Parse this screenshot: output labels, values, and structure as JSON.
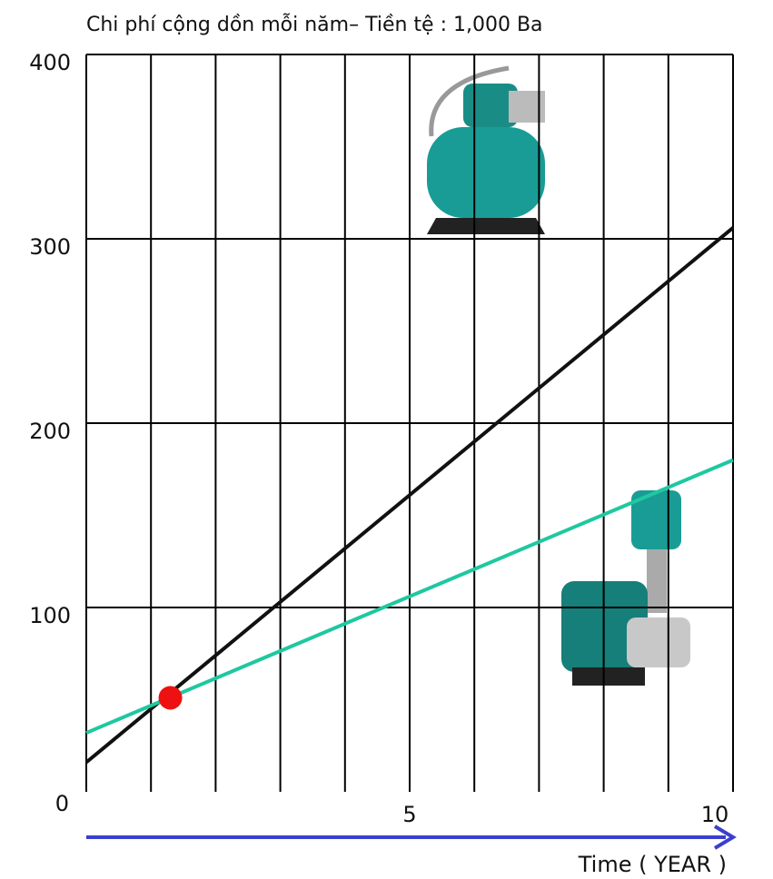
{
  "chart_data": {
    "type": "line",
    "title": "Chi phí cộng dồn mỗi năm– Tiền tệ :  1,000 Ba",
    "x_label": "Time ( YEAR )",
    "xlim": [
      0,
      10
    ],
    "ylim": [
      0,
      400
    ],
    "xticks": [
      5,
      10
    ],
    "yticks": [
      0,
      100,
      200,
      300,
      400
    ],
    "x_gridlines": [
      0,
      1,
      2,
      3,
      4,
      5,
      6,
      7,
      8,
      9,
      10
    ],
    "grid": true,
    "series": [
      {
        "color": "#111111",
        "x": [
          0,
          10
        ],
        "values": [
          16,
          306
        ]
      },
      {
        "color": "#1ec8a0",
        "x": [
          0,
          10
        ],
        "values": [
          32,
          180
        ]
      }
    ],
    "points": {
      "color": "#ee1111",
      "x": [
        1.3
      ],
      "values": [
        51
      ]
    },
    "axis_arrow_color": "#3b3fcc"
  }
}
